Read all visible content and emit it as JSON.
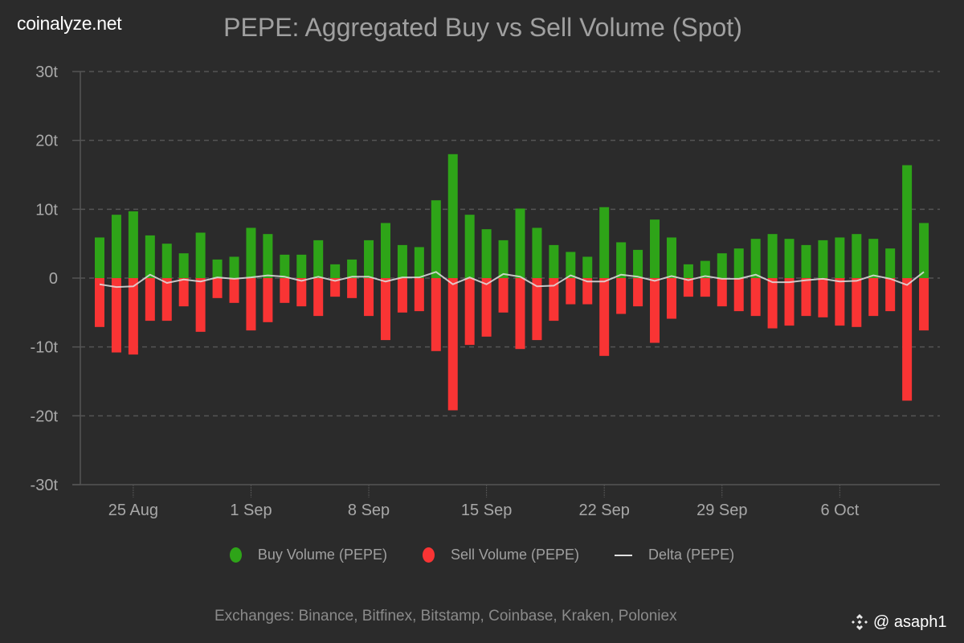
{
  "brand": "coinalyze.net",
  "credit": {
    "handle": "@ asaph1",
    "icon": "binance-logo-icon"
  },
  "footer": "Exchanges: Binance, Bitfinex, Bitstamp, Coinbase, Kraken, Poloniex",
  "legend": [
    {
      "label": "Buy Volume (PEPE)",
      "marker": "dot",
      "color": "#2ea418"
    },
    {
      "label": "Sell Volume (PEPE)",
      "marker": "dot",
      "color": "#f93434"
    },
    {
      "label": "Delta (PEPE)",
      "marker": "line",
      "color": "#e0e0e0"
    }
  ],
  "chart_data": {
    "type": "bar",
    "title": "PEPE: Aggregated Buy vs Sell Volume (Spot)",
    "xlabel": "",
    "ylabel": "",
    "unit": "t",
    "ylim": [
      -30,
      30
    ],
    "yticks": [
      30,
      20,
      10,
      0,
      -10,
      -20,
      -30
    ],
    "ytick_labels": [
      "30t",
      "20t",
      "10t",
      "0",
      "-10t",
      "-20t",
      "-30t"
    ],
    "grid": true,
    "legend_position": "bottom",
    "x_start_date": "23 Aug",
    "x_tick_labels": [
      {
        "label": "25 Aug",
        "index": 2
      },
      {
        "label": "1 Sep",
        "index": 9
      },
      {
        "label": "8 Sep",
        "index": 16
      },
      {
        "label": "15 Sep",
        "index": 23
      },
      {
        "label": "22 Sep",
        "index": 30
      },
      {
        "label": "29 Sep",
        "index": 37
      },
      {
        "label": "6 Oct",
        "index": 44
      }
    ],
    "categories": [
      "23 Aug",
      "24 Aug",
      "25 Aug",
      "26 Aug",
      "27 Aug",
      "28 Aug",
      "29 Aug",
      "30 Aug",
      "31 Aug",
      "1 Sep",
      "2 Sep",
      "3 Sep",
      "4 Sep",
      "5 Sep",
      "6 Sep",
      "7 Sep",
      "8 Sep",
      "9 Sep",
      "10 Sep",
      "11 Sep",
      "12 Sep",
      "13 Sep",
      "14 Sep",
      "15 Sep",
      "16 Sep",
      "17 Sep",
      "18 Sep",
      "19 Sep",
      "20 Sep",
      "21 Sep",
      "22 Sep",
      "23 Sep",
      "24 Sep",
      "25 Sep",
      "26 Sep",
      "27 Sep",
      "28 Sep",
      "29 Sep",
      "30 Sep",
      "1 Oct",
      "2 Oct",
      "3 Oct",
      "4 Oct",
      "5 Oct",
      "6 Oct",
      "7 Oct",
      "8 Oct",
      "9 Oct",
      "10 Oct",
      "11 Oct"
    ],
    "series": [
      {
        "name": "Buy Volume (PEPE)",
        "color": "#2ea418",
        "values": [
          5.9,
          9.2,
          9.7,
          6.2,
          5.0,
          3.6,
          6.6,
          2.7,
          3.1,
          7.3,
          6.4,
          3.4,
          3.4,
          5.5,
          2.0,
          2.7,
          5.5,
          8.0,
          4.8,
          4.5,
          11.3,
          18.0,
          9.2,
          7.1,
          5.5,
          10.1,
          7.3,
          4.8,
          3.8,
          3.1,
          10.3,
          5.2,
          4.1,
          8.5,
          5.9,
          2.0,
          2.5,
          3.6,
          4.3,
          5.7,
          6.4,
          5.7,
          4.8,
          5.5,
          5.9,
          6.4,
          5.7,
          4.3,
          16.4,
          8.0
        ]
      },
      {
        "name": "Sell Volume (PEPE)",
        "color": "#f93434",
        "values": [
          -7.1,
          -10.8,
          -11.1,
          -6.2,
          -6.2,
          -4.1,
          -7.8,
          -2.9,
          -3.6,
          -7.6,
          -6.4,
          -3.6,
          -4.1,
          -5.5,
          -2.7,
          -2.9,
          -5.5,
          -9.0,
          -5.0,
          -4.8,
          -10.6,
          -19.2,
          -9.7,
          -8.5,
          -5.0,
          -10.3,
          -9.0,
          -6.2,
          -3.8,
          -3.8,
          -11.3,
          -5.2,
          -4.1,
          -9.4,
          -5.9,
          -2.7,
          -2.7,
          -4.1,
          -4.8,
          -5.5,
          -7.3,
          -6.9,
          -5.5,
          -5.7,
          -6.9,
          -7.1,
          -5.5,
          -4.8,
          -17.8,
          -7.6
        ]
      },
      {
        "name": "Delta (PEPE)",
        "color": "#e0e0e0",
        "type": "line",
        "values": [
          -0.9,
          -1.3,
          -1.2,
          0.5,
          -0.7,
          -0.2,
          -0.5,
          0.1,
          -0.1,
          0.1,
          0.4,
          0.2,
          -0.4,
          0.2,
          -0.4,
          0.2,
          0.2,
          -0.5,
          0.1,
          0.1,
          0.9,
          -0.9,
          0.1,
          -0.9,
          0.6,
          0.2,
          -1.2,
          -1.1,
          0.4,
          -0.5,
          -0.5,
          0.5,
          0.2,
          -0.4,
          0.3,
          -0.3,
          0.3,
          -0.1,
          -0.1,
          0.5,
          -0.6,
          -0.6,
          -0.3,
          -0.1,
          -0.5,
          -0.4,
          0.4,
          -0.1,
          -1.0,
          0.9
        ]
      }
    ]
  }
}
